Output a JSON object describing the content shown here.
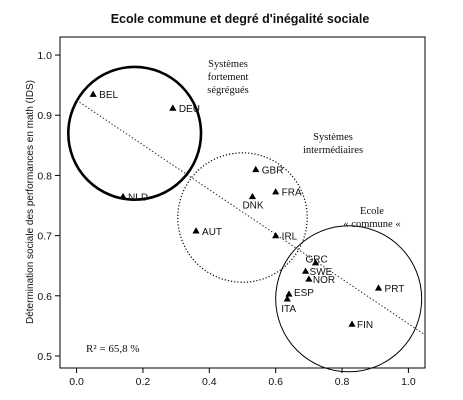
{
  "chart_data": {
    "type": "scatter",
    "title": "Ecole commune et degré d'inégalité sociale",
    "xlabel": "",
    "ylabel": "Détermination sociale des performances en math (IDS)",
    "xlim": [
      -0.05,
      1.05
    ],
    "ylim": [
      0.48,
      1.03
    ],
    "xticks": [
      0.0,
      0.2,
      0.4,
      0.6,
      0.8,
      1.0
    ],
    "xtick_labels": [
      "0.0",
      "0.2",
      "0.4",
      "0.6",
      "0.8",
      "1.0"
    ],
    "yticks": [
      0.5,
      0.6,
      0.7,
      0.8,
      0.9,
      1.0
    ],
    "ytick_labels": [
      "0.5",
      "0.6",
      "0.7",
      "0.8",
      "0.9",
      "1.0"
    ],
    "grid": false,
    "points": [
      {
        "label": "BEL",
        "x": 0.05,
        "y": 0.935
      },
      {
        "label": "DEU",
        "x": 0.29,
        "y": 0.912
      },
      {
        "label": "NLD",
        "x": 0.14,
        "y": 0.765
      },
      {
        "label": "GBR",
        "x": 0.54,
        "y": 0.81
      },
      {
        "label": "DNK",
        "x": 0.53,
        "y": 0.765
      },
      {
        "label": "FRA",
        "x": 0.6,
        "y": 0.773
      },
      {
        "label": "AUT",
        "x": 0.36,
        "y": 0.708
      },
      {
        "label": "IRL",
        "x": 0.6,
        "y": 0.7
      },
      {
        "label": "GRC",
        "x": 0.72,
        "y": 0.655
      },
      {
        "label": "SWE",
        "x": 0.69,
        "y": 0.641
      },
      {
        "label": "NOR",
        "x": 0.7,
        "y": 0.628
      },
      {
        "label": "ESP",
        "x": 0.64,
        "y": 0.603
      },
      {
        "label": "ITA",
        "x": 0.635,
        "y": 0.595
      },
      {
        "label": "PRT",
        "x": 0.91,
        "y": 0.613
      },
      {
        "label": "FIN",
        "x": 0.83,
        "y": 0.553
      }
    ],
    "regression_line": {
      "x": [
        0.0,
        1.05
      ],
      "y": [
        0.925,
        0.535
      ]
    },
    "groups": [
      {
        "label_lines": [
          "Systèmes",
          "fortement",
          "ségrégués"
        ],
        "center": [
          0.175,
          0.87
        ],
        "radius": 0.2,
        "style": "thick"
      },
      {
        "label_lines": [
          "Systèmes",
          "intermédiaires"
        ],
        "center": [
          0.5,
          0.73
        ],
        "radius": 0.195,
        "style": "dotted"
      },
      {
        "label_lines": [
          "Ecole",
          "« commune «"
        ],
        "center": [
          0.82,
          0.595
        ],
        "radius": 0.22,
        "style": "thin"
      }
    ],
    "annotation": "R² = 65,8 %"
  }
}
